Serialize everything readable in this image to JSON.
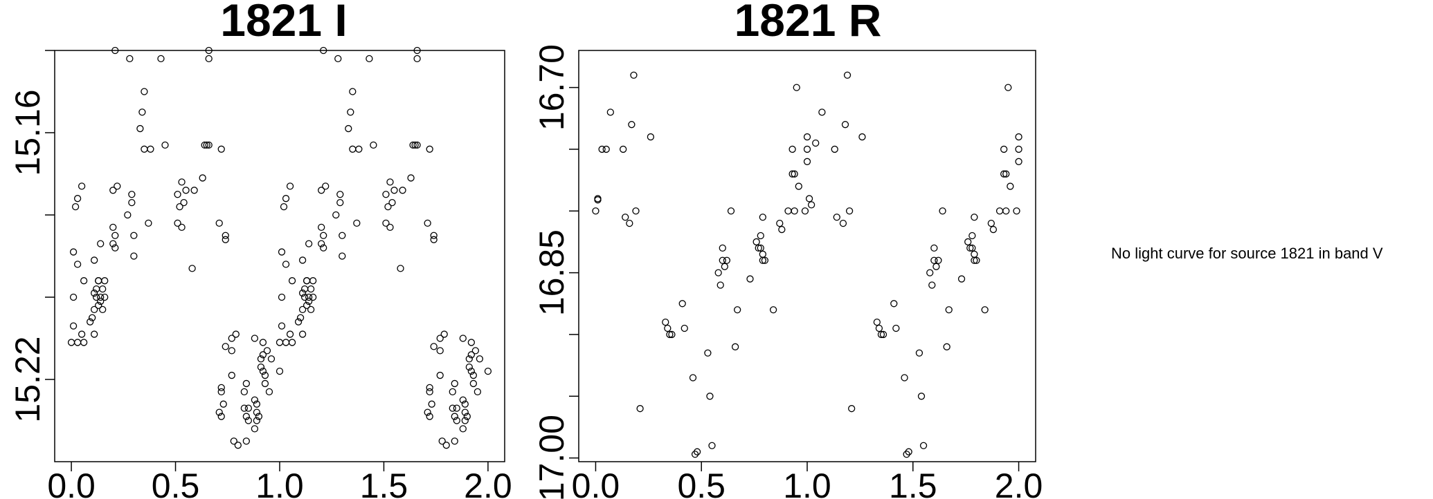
{
  "chart_data": [
    {
      "type": "scatter",
      "title": "1821 I",
      "xlabel": "",
      "ylabel": "",
      "xlim": [
        -0.08,
        2.08
      ],
      "ylim": [
        15.24,
        15.14
      ],
      "y_inverted": true,
      "xticks": [
        0.0,
        0.5,
        1.0,
        1.5,
        2.0
      ],
      "xtick_labels": [
        "0.0",
        "0.5",
        "1.0",
        "1.5",
        "2.0"
      ],
      "yticks": [
        15.22,
        15.2,
        15.18,
        15.16,
        15.14
      ],
      "ytick_labels": [
        "15.22",
        "",
        "",
        "15.16",
        ""
      ],
      "point_color": "#000000",
      "x": [
        0.21,
        0.28,
        0.43,
        0.66,
        0.66,
        0.34,
        0.35,
        0.33,
        0.38,
        0.35,
        0.45,
        0.72,
        0.64,
        0.65,
        0.66,
        0.63,
        0.2,
        0.22,
        0.03,
        0.05,
        0.02,
        0.53,
        0.51,
        0.52,
        0.55,
        0.54,
        0.59,
        0.29,
        0.29,
        0.27,
        0.2,
        0.21,
        0.37,
        0.71,
        0.14,
        0.01,
        0.53,
        0.51,
        0.74,
        0.74,
        0.2,
        0.21,
        0.3,
        0.3,
        0.58,
        0.03,
        0.11,
        0.13,
        0.16,
        0.13,
        0.12,
        0.14,
        0.16,
        0.15,
        0.06,
        0.11,
        0.12,
        0.14,
        0.1,
        0.11,
        0.13,
        0.01,
        0.15,
        0.01,
        0.09,
        0.03,
        0.05,
        0.11,
        0.0,
        0.06,
        0.77,
        0.79,
        0.77,
        0.74,
        0.72,
        0.72,
        0.88,
        0.92,
        0.94,
        0.92,
        0.91,
        0.96,
        0.93,
        0.91,
        0.77,
        0.84,
        0.83,
        0.73,
        0.71,
        0.72,
        0.85,
        0.85,
        0.88,
        0.89,
        0.89,
        0.83,
        0.9,
        0.89,
        0.84,
        0.84,
        0.78,
        0.8,
        0.88,
        0.95,
        0.93,
        0.92,
        1.0,
        1.21,
        1.28,
        1.43,
        1.66,
        1.66,
        1.34,
        1.35,
        1.33,
        1.38,
        1.35,
        1.45,
        1.72,
        1.64,
        1.65,
        1.66,
        1.63,
        1.2,
        1.22,
        1.03,
        1.05,
        1.02,
        1.53,
        1.51,
        1.52,
        1.55,
        1.54,
        1.59,
        1.29,
        1.29,
        1.27,
        1.2,
        1.21,
        1.37,
        1.71,
        1.14,
        1.01,
        1.53,
        1.51,
        1.74,
        1.74,
        1.2,
        1.21,
        1.3,
        1.3,
        1.58,
        1.03,
        1.11,
        1.13,
        1.16,
        1.13,
        1.12,
        1.14,
        1.16,
        1.15,
        1.06,
        1.11,
        1.12,
        1.14,
        1.1,
        1.11,
        1.13,
        1.01,
        1.15,
        1.01,
        1.09,
        1.03,
        1.05,
        1.11,
        1.0,
        1.06,
        1.77,
        1.79,
        1.77,
        1.74,
        1.72,
        1.72,
        1.88,
        1.92,
        1.94,
        1.92,
        1.91,
        1.96,
        1.93,
        1.91,
        1.77,
        1.84,
        1.83,
        1.73,
        1.71,
        1.72,
        1.85,
        1.85,
        1.88,
        1.89,
        1.89,
        1.83,
        1.9,
        1.89,
        1.84,
        1.84,
        1.78,
        1.8,
        1.88,
        1.95,
        1.93,
        1.92,
        2.0
      ],
      "y": [
        15.14,
        15.142,
        15.142,
        15.14,
        15.142,
        15.155,
        15.15,
        15.159,
        15.164,
        15.164,
        15.163,
        15.164,
        15.163,
        15.163,
        15.163,
        15.171,
        15.174,
        15.173,
        15.176,
        15.173,
        15.178,
        15.172,
        15.175,
        15.178,
        15.174,
        15.177,
        15.174,
        15.175,
        15.177,
        15.18,
        15.183,
        15.185,
        15.182,
        15.182,
        15.187,
        15.189,
        15.183,
        15.182,
        15.185,
        15.186,
        15.187,
        15.188,
        15.185,
        15.19,
        15.193,
        15.192,
        15.191,
        15.196,
        15.196,
        15.196,
        15.198,
        15.2,
        15.2,
        15.198,
        15.196,
        15.199,
        15.2,
        15.201,
        15.205,
        15.203,
        15.202,
        15.2,
        15.203,
        15.207,
        15.206,
        15.211,
        15.209,
        15.209,
        15.211,
        15.211,
        15.21,
        15.209,
        15.213,
        15.212,
        15.222,
        15.223,
        15.21,
        15.211,
        15.213,
        15.214,
        15.215,
        15.215,
        15.219,
        15.217,
        15.219,
        15.221,
        15.223,
        15.226,
        15.228,
        15.229,
        15.227,
        15.23,
        15.225,
        15.226,
        15.23,
        15.227,
        15.229,
        15.228,
        15.229,
        15.235,
        15.235,
        15.236,
        15.232,
        15.223,
        15.221,
        15.218,
        15.218,
        15.14,
        15.142,
        15.142,
        15.14,
        15.142,
        15.155,
        15.15,
        15.159,
        15.164,
        15.164,
        15.163,
        15.164,
        15.163,
        15.163,
        15.163,
        15.171,
        15.174,
        15.173,
        15.176,
        15.173,
        15.178,
        15.172,
        15.175,
        15.178,
        15.174,
        15.177,
        15.174,
        15.175,
        15.177,
        15.18,
        15.183,
        15.185,
        15.182,
        15.182,
        15.187,
        15.189,
        15.183,
        15.182,
        15.185,
        15.186,
        15.187,
        15.188,
        15.185,
        15.19,
        15.193,
        15.192,
        15.191,
        15.196,
        15.196,
        15.196,
        15.198,
        15.2,
        15.2,
        15.198,
        15.196,
        15.199,
        15.2,
        15.201,
        15.205,
        15.203,
        15.202,
        15.2,
        15.203,
        15.207,
        15.206,
        15.211,
        15.209,
        15.209,
        15.211,
        15.211,
        15.21,
        15.209,
        15.213,
        15.212,
        15.222,
        15.223,
        15.21,
        15.211,
        15.213,
        15.214,
        15.215,
        15.215,
        15.219,
        15.217,
        15.219,
        15.221,
        15.223,
        15.226,
        15.228,
        15.229,
        15.227,
        15.23,
        15.225,
        15.226,
        15.23,
        15.227,
        15.229,
        15.228,
        15.229,
        15.235,
        15.235,
        15.236,
        15.232,
        15.223,
        15.221,
        15.218,
        15.218
      ]
    },
    {
      "type": "scatter",
      "title": "1821 R",
      "xlabel": "",
      "ylabel": "",
      "xlim": [
        -0.08,
        2.08
      ],
      "ylim": [
        17.003,
        16.67
      ],
      "y_inverted": true,
      "xticks": [
        0.0,
        0.5,
        1.0,
        1.5,
        2.0
      ],
      "xtick_labels": [
        "0.0",
        "0.5",
        "1.0",
        "1.5",
        "2.0"
      ],
      "yticks": [
        16.7,
        16.75,
        16.8,
        16.85,
        16.9,
        16.95,
        17.0
      ],
      "ytick_labels": [
        "16.70",
        "",
        "",
        "16.85",
        "",
        "",
        "17.00"
      ],
      "point_color": "#000000",
      "x": [
        0.0,
        0.01,
        0.01,
        0.03,
        0.05,
        0.07,
        0.13,
        0.14,
        0.16,
        0.17,
        0.18,
        0.19,
        0.21,
        0.26,
        0.33,
        0.34,
        0.35,
        0.36,
        0.41,
        0.42,
        0.46,
        0.47,
        0.48,
        0.53,
        0.54,
        0.55,
        0.58,
        0.59,
        0.6,
        0.6,
        0.61,
        0.62,
        0.64,
        0.66,
        0.67,
        0.73,
        0.76,
        0.77,
        0.78,
        0.78,
        0.79,
        0.79,
        0.79,
        0.8,
        0.84,
        0.87,
        0.88,
        0.91,
        0.93,
        0.93,
        0.94,
        0.94,
        0.95,
        0.96,
        0.99,
        1.0,
        1.0,
        1.0,
        1.01,
        1.02,
        1.04,
        1.07,
        1.13,
        1.14,
        1.17,
        1.18,
        1.19,
        1.2,
        1.21,
        1.26,
        1.33,
        1.34,
        1.35,
        1.36,
        1.41,
        1.42,
        1.46,
        1.47,
        1.48,
        1.53,
        1.54,
        1.55,
        1.58,
        1.59,
        1.6,
        1.6,
        1.61,
        1.62,
        1.64,
        1.66,
        1.67,
        1.73,
        1.76,
        1.77,
        1.78,
        1.78,
        1.79,
        1.79,
        1.79,
        1.8,
        1.84,
        1.87,
        1.88,
        1.91,
        1.93,
        1.93,
        1.94,
        1.94,
        1.95,
        1.96,
        1.99,
        2.0,
        2.0,
        2.0
      ],
      "y": [
        16.8,
        16.79,
        16.791,
        16.75,
        16.75,
        16.72,
        16.75,
        16.805,
        16.81,
        16.73,
        16.69,
        16.8,
        16.96,
        16.74,
        16.89,
        16.895,
        16.9,
        16.9,
        16.875,
        16.895,
        16.935,
        16.997,
        16.995,
        16.915,
        16.95,
        16.99,
        16.85,
        16.86,
        16.83,
        16.84,
        16.845,
        16.84,
        16.8,
        16.91,
        16.88,
        16.855,
        16.825,
        16.83,
        16.82,
        16.83,
        16.84,
        16.835,
        16.805,
        16.84,
        16.88,
        16.81,
        16.815,
        16.8,
        16.77,
        16.75,
        16.8,
        16.77,
        16.7,
        16.78,
        16.8,
        16.75,
        16.76,
        16.74,
        16.79,
        16.795,
        16.745,
        16.72,
        16.75,
        16.805,
        16.81,
        16.73,
        16.69,
        16.8,
        16.96,
        16.74,
        16.89,
        16.895,
        16.9,
        16.9,
        16.875,
        16.895,
        16.935,
        16.997,
        16.995,
        16.915,
        16.95,
        16.99,
        16.85,
        16.86,
        16.83,
        16.84,
        16.845,
        16.84,
        16.8,
        16.91,
        16.88,
        16.855,
        16.825,
        16.83,
        16.82,
        16.83,
        16.84,
        16.835,
        16.805,
        16.84,
        16.88,
        16.81,
        16.815,
        16.8,
        16.77,
        16.75,
        16.8,
        16.77,
        16.7,
        16.78,
        16.8,
        16.75,
        16.76,
        16.74
      ]
    }
  ],
  "no_data_message": "No light curve for source 1821 in band V"
}
